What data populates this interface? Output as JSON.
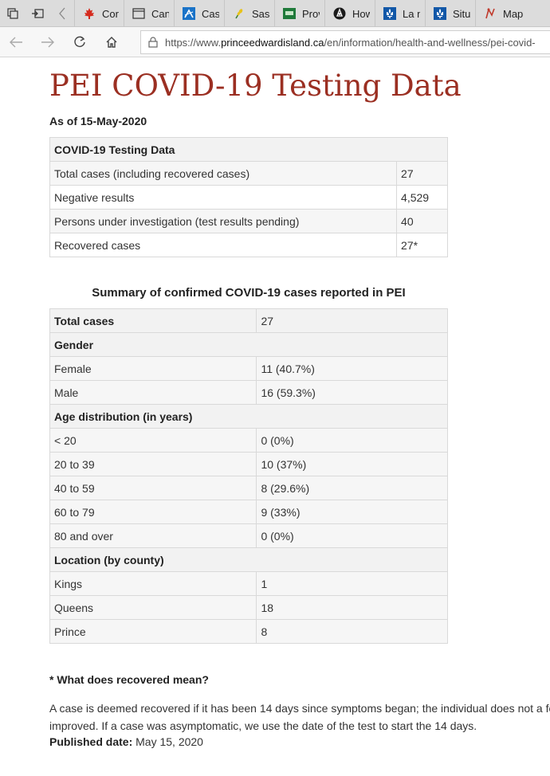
{
  "browser": {
    "tabs": [
      {
        "label": "Coro",
        "icon": "maple-leaf-icon"
      },
      {
        "label": "Can",
        "icon": "page-icon"
      },
      {
        "label": "Case",
        "icon": "arrow-chart-icon"
      },
      {
        "label": "Sask",
        "icon": "wheat-icon"
      },
      {
        "label": "Prov",
        "icon": "green-flag-icon"
      },
      {
        "label": "How",
        "icon": "ontario-trillium-icon"
      },
      {
        "label": "La m",
        "icon": "quebec-fleur-icon"
      },
      {
        "label": "Situ",
        "icon": "quebec-fleur-icon"
      },
      {
        "label": "Map",
        "icon": "map-pin-icon"
      }
    ],
    "url_prefix": "https://www.",
    "url_host": "princeedwardisland.ca",
    "url_path": "/en/information/health-and-wellness/pei-covid-"
  },
  "page": {
    "title": "PEI COVID-19 Testing Data",
    "as_of": "As of 15-May-2020",
    "testing_table": {
      "header": "COVID-19 Testing Data",
      "rows": [
        {
          "label": "Total cases (including recovered cases)",
          "value": "27"
        },
        {
          "label": "Negative results",
          "value": "4,529"
        },
        {
          "label": "Persons under investigation (test results pending)",
          "value": "40"
        },
        {
          "label": "Recovered cases",
          "value": "27*"
        }
      ]
    },
    "summary_caption": "Summary of confirmed COVID-19 cases reported in PEI",
    "summary": {
      "total_label": "Total cases",
      "total_value": "27",
      "gender_heading": "Gender",
      "gender": [
        {
          "label": "Female",
          "value": "11 (40.7%)"
        },
        {
          "label": "Male",
          "value": "16 (59.3%)"
        }
      ],
      "age_heading": "Age distribution (in years)",
      "age": [
        {
          "label": "< 20",
          "value": "0 (0%)"
        },
        {
          "label": "20 to 39",
          "value": "10 (37%)"
        },
        {
          "label": "40 to 59",
          "value": "8 (29.6%)"
        },
        {
          "label": "60 to 79",
          "value": "9 (33%)"
        },
        {
          "label": "80 and over",
          "value": "0 (0%)"
        }
      ],
      "location_heading": "Location (by county)",
      "location": [
        {
          "label": "Kings",
          "value": "1"
        },
        {
          "label": "Queens",
          "value": "18"
        },
        {
          "label": "Prince",
          "value": "8"
        }
      ]
    },
    "footnote_question": "* What does recovered mean?",
    "footnote_line1": "A case is deemed recovered if it has been 14 days since symptoms began; the individual does not a fe",
    "footnote_line2": "improved. If a case was asymptomatic, we use the date of the test to start the 14 days.",
    "published_label": "Published date:",
    "published_value": "May 15, 2020"
  },
  "colors": {
    "title": "#9b2f22",
    "tab_strip": "#dcdcdc"
  }
}
